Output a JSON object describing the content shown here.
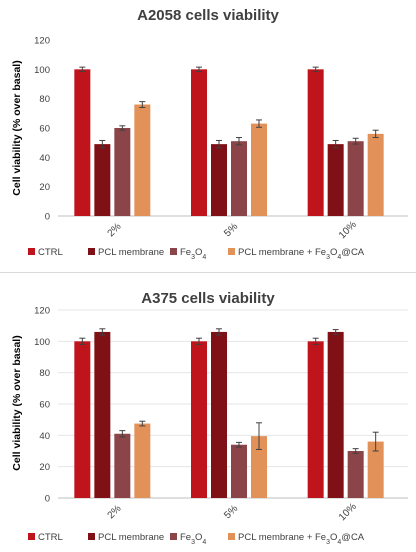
{
  "colors": {
    "ctrl": "#C0141C",
    "pcl": "#7F1016",
    "fe3o4": "#8B4448",
    "pcl_fe3o4_ca": "#E29158",
    "axis": "#bfbfbf",
    "grid": "#e6e6e6",
    "error": "#404040"
  },
  "chart_data": [
    {
      "type": "bar",
      "title": "A2058 cells viability",
      "ylabel": "Cell viability (% over basal)",
      "xlabel": "",
      "ylim": [
        0,
        120
      ],
      "yticks": [
        "0",
        "20",
        "40",
        "60",
        "80",
        "100",
        "120"
      ],
      "grid": false,
      "categories": [
        "2%",
        "5%",
        "10%"
      ],
      "legend_position": "bottom",
      "series": [
        {
          "name": "CTRL",
          "values": [
            100,
            100,
            100
          ],
          "errors": [
            1.5,
            1.5,
            1.5
          ]
        },
        {
          "name": "PCL membrane",
          "values": [
            49,
            49,
            49
          ],
          "errors": [
            2.5,
            2.5,
            2.5
          ]
        },
        {
          "name": "Fe3O4",
          "values": [
            60,
            51,
            51
          ],
          "errors": [
            1.5,
            2.5,
            2
          ]
        },
        {
          "name": "PCL membrane + Fe3O4@CA",
          "values": [
            76,
            63,
            56
          ],
          "errors": [
            2,
            2.5,
            2.5
          ]
        }
      ]
    },
    {
      "type": "bar",
      "title": "A375 cells viability",
      "ylabel": "Cell viability (% over basal)",
      "xlabel": "",
      "ylim": [
        0,
        120
      ],
      "yticks": [
        "0",
        "20",
        "40",
        "60",
        "80",
        "100",
        "120"
      ],
      "grid": true,
      "categories": [
        "2%",
        "5%",
        "10%"
      ],
      "legend_position": "bottom",
      "series": [
        {
          "name": "CTRL",
          "values": [
            100,
            100,
            100
          ],
          "errors": [
            2,
            2,
            2
          ]
        },
        {
          "name": "PCL membrane",
          "values": [
            106,
            106,
            106
          ],
          "errors": [
            2,
            2,
            1.5
          ]
        },
        {
          "name": "Fe3O4",
          "values": [
            41,
            34,
            30
          ],
          "errors": [
            2,
            1.5,
            1.5
          ]
        },
        {
          "name": "PCL membrane + Fe3O4@CA",
          "values": [
            47.5,
            39.5,
            36
          ],
          "errors": [
            1.5,
            8.5,
            6
          ]
        }
      ]
    }
  ]
}
